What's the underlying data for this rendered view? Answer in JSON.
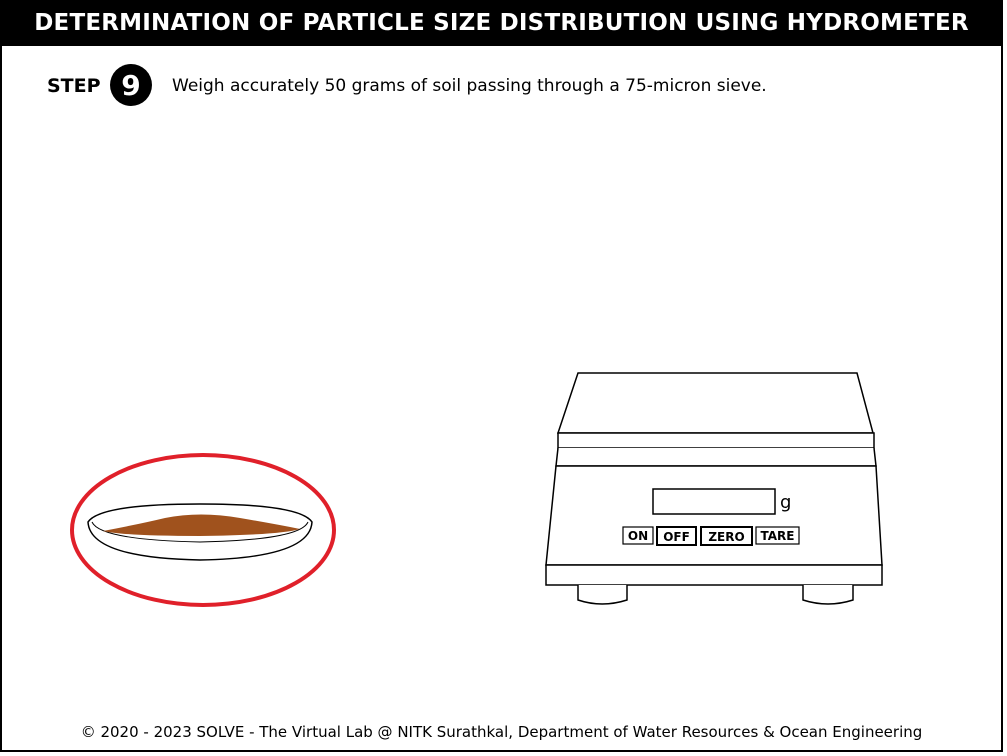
{
  "header": {
    "title": "DETERMINATION OF PARTICLE SIZE DISTRIBUTION USING HYDROMETER"
  },
  "step": {
    "label": "STEP",
    "number": "9",
    "instruction": "Weigh accurately 50 grams of soil passing through a 75-micron sieve."
  },
  "balance": {
    "display_value": "",
    "unit": "g",
    "buttons": {
      "on": "ON",
      "off": "OFF",
      "zero": "ZERO",
      "tare": "TARE"
    }
  },
  "dish": {
    "highlight_color": "#e0202a",
    "soil_color": "#a0521d"
  },
  "footer": {
    "text": "© 2020 - 2023 SOLVE - The Virtual Lab @ NITK Surathkal, Department of Water Resources & Ocean Engineering"
  }
}
